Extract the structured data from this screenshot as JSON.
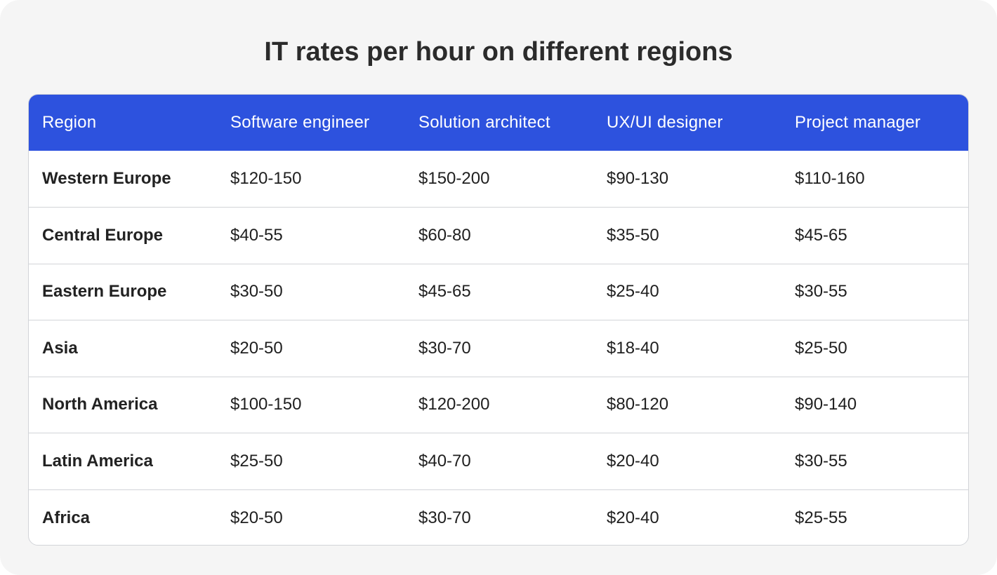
{
  "colors": {
    "header_bg": "#2d52de",
    "header_text": "#ffffff",
    "page_bg": "#f5f5f5",
    "title_text": "#2b2b2b",
    "border": "#d2d4d8"
  },
  "chart_data": {
    "type": "table",
    "title": "IT rates per hour on different regions",
    "columns": [
      "Region",
      "Software engineer",
      "Solution architect",
      "UX/UI designer",
      "Project manager"
    ],
    "rows": [
      [
        "Western Europe",
        "$120-150",
        "$150-200",
        "$90-130",
        "$110-160"
      ],
      [
        "Central Europe",
        "$40-55",
        "$60-80",
        "$35-50",
        "$45-65"
      ],
      [
        "Eastern Europe",
        "$30-50",
        "$45-65",
        "$25-40",
        "$30-55"
      ],
      [
        "Asia",
        "$20-50",
        "$30-70",
        "$18-40",
        "$25-50"
      ],
      [
        "North America",
        "$100-150",
        "$120-200",
        "$80-120",
        "$90-140"
      ],
      [
        "Latin America",
        "$25-50",
        "$40-70",
        "$20-40",
        "$30-55"
      ],
      [
        "Africa",
        "$20-50",
        "$30-70",
        "$20-40",
        "$25-55"
      ]
    ]
  }
}
